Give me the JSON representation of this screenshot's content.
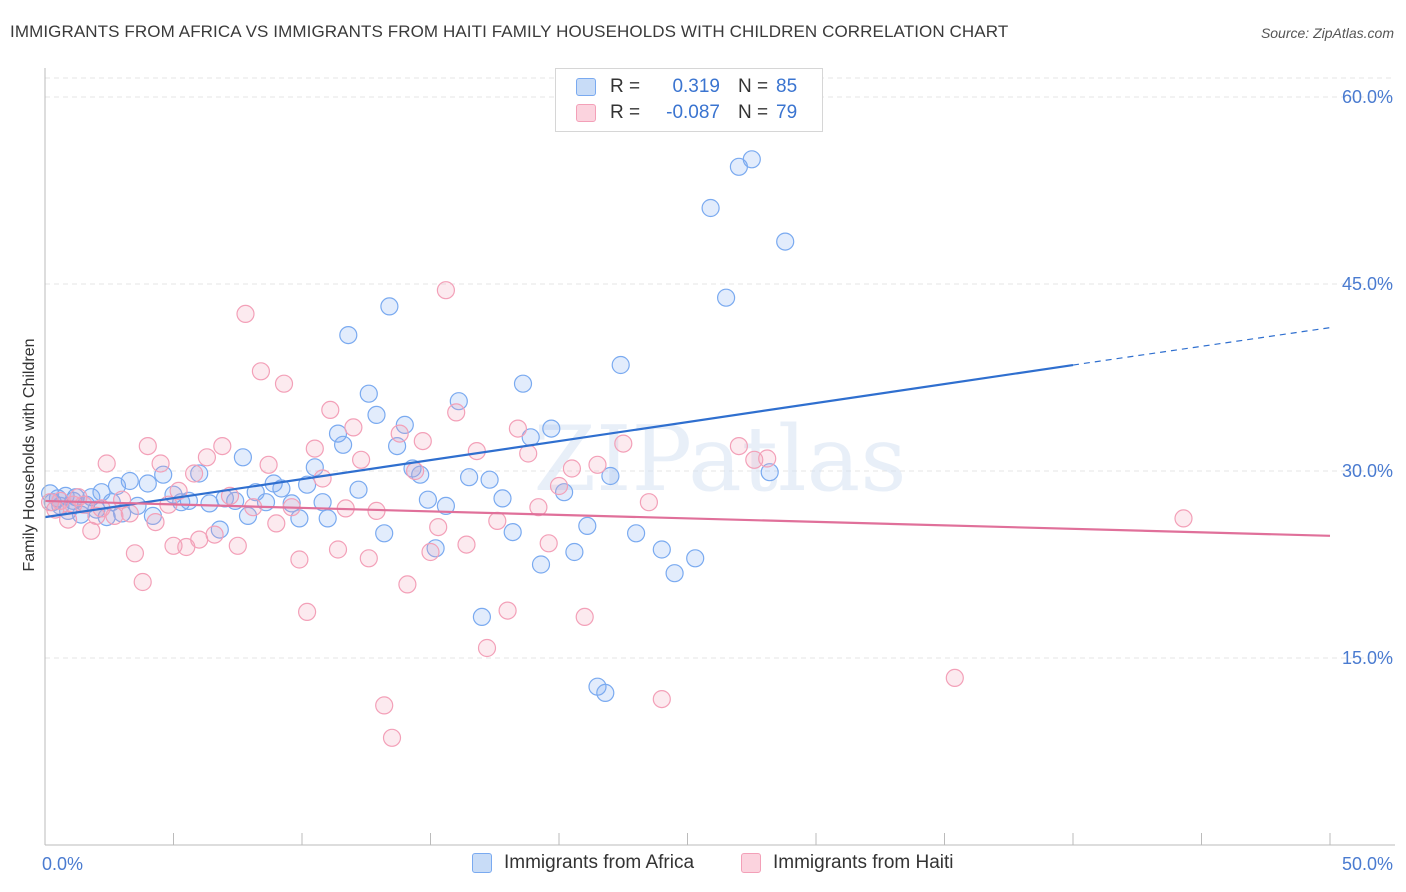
{
  "title": "IMMIGRANTS FROM AFRICA VS IMMIGRANTS FROM HAITI FAMILY HOUSEHOLDS WITH CHILDREN CORRELATION CHART",
  "source": "Source: ZipAtlas.com",
  "watermark": "ZIPatlas",
  "legend": {
    "rows": [
      {
        "r_label": "R =",
        "r_value": "0.319",
        "n_label": "N =",
        "n_value": "85",
        "color": "#7aaaf0"
      },
      {
        "r_label": "R =",
        "r_value": "-0.087",
        "n_label": "N =",
        "n_value": "79",
        "color": "#f3a0b8"
      }
    ],
    "bottom": [
      {
        "name": "Immigrants from Africa",
        "color": "#7aaaf0"
      },
      {
        "name": "Immigrants from Haiti",
        "color": "#f3a0b8"
      }
    ]
  },
  "chart_data": {
    "type": "scatter",
    "title": "IMMIGRANTS FROM AFRICA VS IMMIGRANTS FROM HAITI FAMILY HOUSEHOLDS WITH CHILDREN CORRELATION CHART",
    "xlabel": "",
    "ylabel": "Family Households with Children",
    "xlim": [
      0,
      50
    ],
    "ylim": [
      0,
      61.5
    ],
    "x_tick_labels": [
      {
        "value": 0,
        "label": "0.0%"
      },
      {
        "value": 50,
        "label": "50.0%"
      }
    ],
    "y_tick_labels": [
      {
        "value": 15,
        "label": "15.0%"
      },
      {
        "value": 30,
        "label": "30.0%"
      },
      {
        "value": 45,
        "label": "45.0%"
      },
      {
        "value": 60,
        "label": "60.0%"
      }
    ],
    "grid": true,
    "legend_position": "top-center",
    "series": [
      {
        "name": "Immigrants from Africa",
        "color": "#7aaaf0",
        "trend": {
          "x0": 0.0,
          "y0": 26.3,
          "x1": 40.0,
          "y1": 38.5,
          "dash_to_x": 50.0,
          "dash_to_y": 41.5
        },
        "points": [
          [
            0.2,
            28.2
          ],
          [
            0.3,
            27.5
          ],
          [
            0.5,
            27.8
          ],
          [
            0.6,
            27.2
          ],
          [
            0.8,
            28.0
          ],
          [
            0.9,
            26.8
          ],
          [
            1.1,
            27.6
          ],
          [
            1.2,
            27.9
          ],
          [
            1.4,
            26.5
          ],
          [
            1.6,
            27.3
          ],
          [
            1.8,
            27.9
          ],
          [
            2.0,
            26.9
          ],
          [
            2.2,
            28.3
          ],
          [
            2.4,
            26.3
          ],
          [
            2.6,
            27.5
          ],
          [
            2.8,
            28.8
          ],
          [
            3.0,
            26.6
          ],
          [
            3.3,
            29.2
          ],
          [
            3.6,
            27.2
          ],
          [
            4.0,
            29.0
          ],
          [
            4.2,
            26.4
          ],
          [
            4.6,
            29.7
          ],
          [
            5.0,
            28.1
          ],
          [
            5.3,
            27.5
          ],
          [
            5.6,
            27.6
          ],
          [
            6.0,
            29.8
          ],
          [
            6.4,
            27.4
          ],
          [
            6.8,
            25.3
          ],
          [
            7.0,
            27.8
          ],
          [
            7.4,
            27.6
          ],
          [
            7.7,
            31.1
          ],
          [
            7.9,
            26.4
          ],
          [
            8.2,
            28.3
          ],
          [
            8.6,
            27.5
          ],
          [
            8.9,
            29.0
          ],
          [
            9.2,
            28.6
          ],
          [
            9.6,
            27.4
          ],
          [
            9.9,
            26.2
          ],
          [
            10.2,
            28.9
          ],
          [
            10.5,
            30.3
          ],
          [
            10.8,
            27.5
          ],
          [
            11.0,
            26.2
          ],
          [
            11.4,
            33.0
          ],
          [
            11.6,
            32.1
          ],
          [
            11.8,
            40.9
          ],
          [
            12.2,
            28.5
          ],
          [
            12.6,
            36.2
          ],
          [
            12.9,
            34.5
          ],
          [
            13.2,
            25.0
          ],
          [
            13.4,
            43.2
          ],
          [
            13.7,
            32.0
          ],
          [
            14.0,
            33.7
          ],
          [
            14.3,
            30.2
          ],
          [
            14.6,
            29.7
          ],
          [
            14.9,
            27.7
          ],
          [
            15.2,
            23.8
          ],
          [
            15.6,
            27.2
          ],
          [
            16.1,
            35.6
          ],
          [
            16.5,
            29.5
          ],
          [
            17.0,
            18.3
          ],
          [
            17.3,
            29.3
          ],
          [
            17.8,
            27.8
          ],
          [
            18.2,
            25.1
          ],
          [
            18.6,
            37.0
          ],
          [
            18.9,
            32.7
          ],
          [
            19.3,
            22.5
          ],
          [
            19.7,
            33.4
          ],
          [
            20.2,
            28.3
          ],
          [
            20.6,
            23.5
          ],
          [
            21.1,
            25.6
          ],
          [
            21.5,
            12.7
          ],
          [
            21.8,
            12.2
          ],
          [
            22.0,
            29.6
          ],
          [
            22.4,
            38.5
          ],
          [
            23.0,
            25.0
          ],
          [
            24.0,
            23.7
          ],
          [
            24.5,
            21.8
          ],
          [
            25.3,
            23.0
          ],
          [
            25.9,
            51.1
          ],
          [
            26.5,
            43.9
          ],
          [
            27.0,
            54.4
          ],
          [
            27.5,
            55.0
          ],
          [
            28.2,
            29.9
          ],
          [
            28.8,
            48.4
          ],
          [
            29.2,
            58.6
          ]
        ]
      },
      {
        "name": "Immigrants from Haiti",
        "color": "#f3a0b8",
        "trend": {
          "x0": 0.0,
          "y0": 27.6,
          "x1": 50.0,
          "y1": 24.8
        },
        "points": [
          [
            0.2,
            27.5
          ],
          [
            0.4,
            26.9
          ],
          [
            0.6,
            27.6
          ],
          [
            0.9,
            26.1
          ],
          [
            1.1,
            27.3
          ],
          [
            1.3,
            27.9
          ],
          [
            1.5,
            27.3
          ],
          [
            1.8,
            25.2
          ],
          [
            2.0,
            26.4
          ],
          [
            2.2,
            27.0
          ],
          [
            2.4,
            30.6
          ],
          [
            2.7,
            26.4
          ],
          [
            3.0,
            27.7
          ],
          [
            3.3,
            26.6
          ],
          [
            3.5,
            23.4
          ],
          [
            3.8,
            21.1
          ],
          [
            4.0,
            32.0
          ],
          [
            4.3,
            25.9
          ],
          [
            4.5,
            30.6
          ],
          [
            4.8,
            27.3
          ],
          [
            5.0,
            24.0
          ],
          [
            5.2,
            28.4
          ],
          [
            5.5,
            23.9
          ],
          [
            5.8,
            29.8
          ],
          [
            6.0,
            24.5
          ],
          [
            6.3,
            31.1
          ],
          [
            6.6,
            24.9
          ],
          [
            6.9,
            32.0
          ],
          [
            7.2,
            28.0
          ],
          [
            7.5,
            24.0
          ],
          [
            7.8,
            42.6
          ],
          [
            8.1,
            27.1
          ],
          [
            8.4,
            38.0
          ],
          [
            8.7,
            30.5
          ],
          [
            9.0,
            25.8
          ],
          [
            9.3,
            37.0
          ],
          [
            9.6,
            27.1
          ],
          [
            9.9,
            22.9
          ],
          [
            10.2,
            18.7
          ],
          [
            10.5,
            31.8
          ],
          [
            10.8,
            29.4
          ],
          [
            11.1,
            34.9
          ],
          [
            11.4,
            23.7
          ],
          [
            11.7,
            27.0
          ],
          [
            12.0,
            33.5
          ],
          [
            12.3,
            30.9
          ],
          [
            12.6,
            23.0
          ],
          [
            12.9,
            26.8
          ],
          [
            13.2,
            11.2
          ],
          [
            13.5,
            8.6
          ],
          [
            13.8,
            33.0
          ],
          [
            14.1,
            20.9
          ],
          [
            14.4,
            30.0
          ],
          [
            14.7,
            32.4
          ],
          [
            15.0,
            23.5
          ],
          [
            15.3,
            25.5
          ],
          [
            15.6,
            44.5
          ],
          [
            16.0,
            34.7
          ],
          [
            16.4,
            24.1
          ],
          [
            16.8,
            31.6
          ],
          [
            17.2,
            15.8
          ],
          [
            17.6,
            26.0
          ],
          [
            18.0,
            18.8
          ],
          [
            18.4,
            33.4
          ],
          [
            18.8,
            31.4
          ],
          [
            19.2,
            27.1
          ],
          [
            19.6,
            24.2
          ],
          [
            20.0,
            28.8
          ],
          [
            20.5,
            30.2
          ],
          [
            21.0,
            18.3
          ],
          [
            21.5,
            30.5
          ],
          [
            22.5,
            32.2
          ],
          [
            23.5,
            27.5
          ],
          [
            24.0,
            11.7
          ],
          [
            27.0,
            32.0
          ],
          [
            27.6,
            30.9
          ],
          [
            28.1,
            31.0
          ],
          [
            35.4,
            13.4
          ],
          [
            44.3,
            26.2
          ]
        ]
      }
    ]
  }
}
